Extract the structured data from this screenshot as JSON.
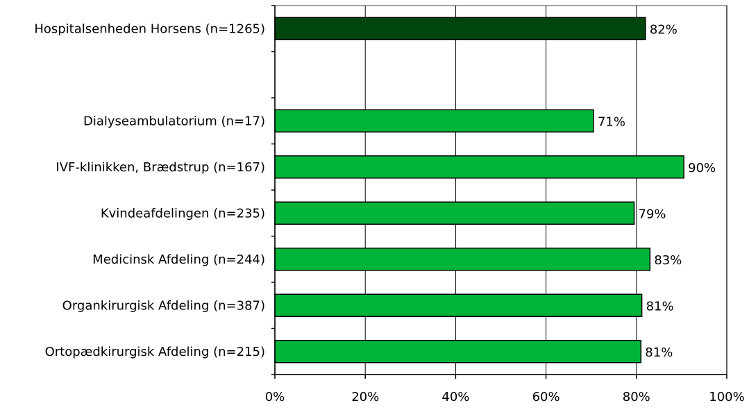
{
  "chart_data": {
    "type": "bar",
    "orientation": "horizontal",
    "categories": [
      "Hospitalsenheden Horsens (n=1265)",
      "",
      "Dialyseambulatorium (n=17)",
      "IVF-klinikken, Brædstrup (n=167)",
      "Kvindeafdelingen (n=235)",
      "Medicinsk Afdeling (n=244)",
      "Organkirurgisk Afdeling (n=387)",
      "Ortopædkirurgisk Afdeling (n=215)"
    ],
    "values": [
      82,
      null,
      70.5,
      90.5,
      79.5,
      83,
      81.2,
      81
    ],
    "value_labels": [
      "82%",
      "",
      "71%",
      "90%",
      "79%",
      "83%",
      "81%",
      "81%"
    ],
    "bar_colors": [
      "#00460c",
      null,
      "#00b43a",
      "#00b43a",
      "#00b43a",
      "#00b43a",
      "#00b43a",
      "#00b43a"
    ],
    "xlim": [
      0,
      100
    ],
    "x_ticks": [
      0,
      20,
      40,
      60,
      80,
      100
    ],
    "x_tick_labels": [
      "0%",
      "20%",
      "40%",
      "60%",
      "80%",
      "100%"
    ],
    "grid": "vertical",
    "legend": "none",
    "title": "",
    "xlabel": "",
    "ylabel": ""
  }
}
